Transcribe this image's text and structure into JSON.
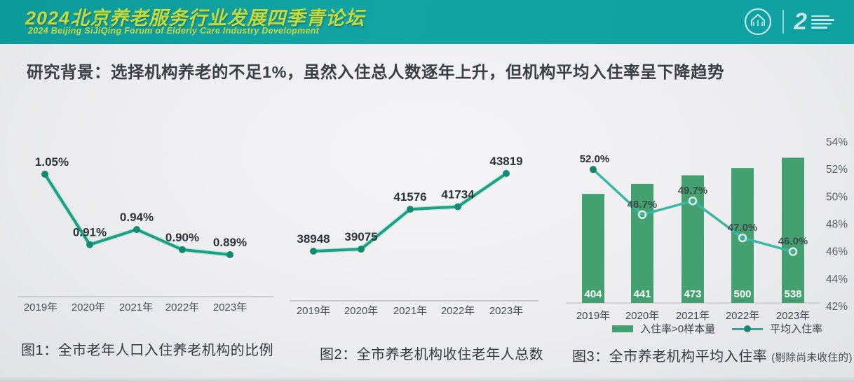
{
  "header": {
    "title": "2024北京养老服务行业发展四季青论坛",
    "subtitle": "2024 Beijing SiJiQing Forum of Elderly Care Industry Development",
    "badge_number": "2"
  },
  "heading": "研究背景：选择机构养老的不足1%，虽然入住总人数逐年上升，但机构平均入住率呈下降趋势",
  "legend": {
    "bar_label": "入住率>0样本量",
    "line_label": "平均入住率"
  },
  "colors": {
    "header_band": "#10A1A1",
    "header_text": "#C6D93B",
    "line_green": "#1F9E84",
    "point_green": "#128A70",
    "bar_green": "#43A06F",
    "line_teal": "#3CB6A4",
    "axis_gray": "#B7BABD"
  },
  "chart_data": [
    {
      "type": "line",
      "title": "图1：全市老年人口入住养老机构的比例",
      "categories": [
        "2019年",
        "2020年",
        "2021年",
        "2022年",
        "2023年"
      ],
      "values": [
        1.05,
        0.91,
        0.94,
        0.9,
        0.89
      ],
      "labels": [
        "1.05%",
        "0.91%",
        "0.94%",
        "0.90%",
        "0.89%"
      ],
      "xlabel": "",
      "ylabel": "",
      "grid": false,
      "legend_position": "none"
    },
    {
      "type": "line",
      "title": "图2：全市养老机构收住老年人总数",
      "categories": [
        "2019年",
        "2020年",
        "2021年",
        "2022年",
        "2023年"
      ],
      "values": [
        38948,
        39075,
        41576,
        41734,
        43819
      ],
      "labels": [
        "38948",
        "39075",
        "41576",
        "41734",
        "43819"
      ],
      "xlabel": "",
      "ylabel": "",
      "grid": false,
      "legend_position": "none"
    },
    {
      "type": "bar+line",
      "title": "图3：全市养老机构平均入住率",
      "title_note": "(剔除尚未收住的)",
      "categories": [
        "2019年",
        "2020年",
        "2021年",
        "2022年",
        "2023年"
      ],
      "series": [
        {
          "name": "入住率>0样本量",
          "type": "bar",
          "values": [
            404,
            441,
            473,
            500,
            538
          ]
        },
        {
          "name": "平均入住率",
          "type": "line",
          "values": [
            52.0,
            48.7,
            49.7,
            47.0,
            46.0
          ],
          "labels": [
            "52.0%",
            "48.7%",
            "49.7%",
            "47.0%",
            "46.0%"
          ]
        }
      ],
      "right_axis": {
        "min": 42,
        "max": 54,
        "step": 2,
        "tick_labels": [
          "54%",
          "52%",
          "50%",
          "48%",
          "46%",
          "44%",
          "42%"
        ]
      },
      "grid": false,
      "legend_position": "bottom"
    }
  ]
}
